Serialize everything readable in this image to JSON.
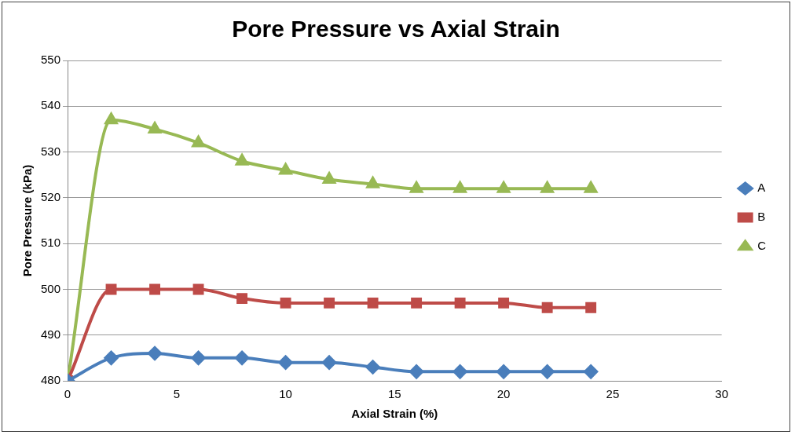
{
  "chart_data": {
    "type": "line",
    "title": "Pore Pressure vs Axial Strain",
    "xlabel": "Axial Strain (%)",
    "ylabel": "Pore Pressure (kPa)",
    "x": [
      0,
      2,
      4,
      6,
      8,
      10,
      12,
      14,
      16,
      18,
      20,
      22,
      24
    ],
    "series": [
      {
        "name": "A",
        "color": "#4a7ebb",
        "marker": "diamond",
        "values": [
          480,
          485,
          486,
          485,
          485,
          484,
          484,
          483,
          482,
          482,
          482,
          482,
          482
        ]
      },
      {
        "name": "B",
        "color": "#be4b48",
        "marker": "square",
        "values": [
          480,
          500,
          500,
          500,
          498,
          497,
          497,
          497,
          497,
          497,
          497,
          496,
          496
        ]
      },
      {
        "name": "C",
        "color": "#98b954",
        "marker": "triangle",
        "values": [
          480,
          537,
          535,
          532,
          528,
          526,
          524,
          523,
          522,
          522,
          522,
          522,
          522
        ]
      }
    ],
    "xlim": [
      0,
      30
    ],
    "xticks": [
      0,
      5,
      10,
      15,
      20,
      25,
      30
    ],
    "ylim": [
      480,
      550
    ],
    "yticks": [
      480,
      490,
      500,
      510,
      520,
      530,
      540,
      550
    ],
    "grid": "y",
    "legend": "right"
  }
}
